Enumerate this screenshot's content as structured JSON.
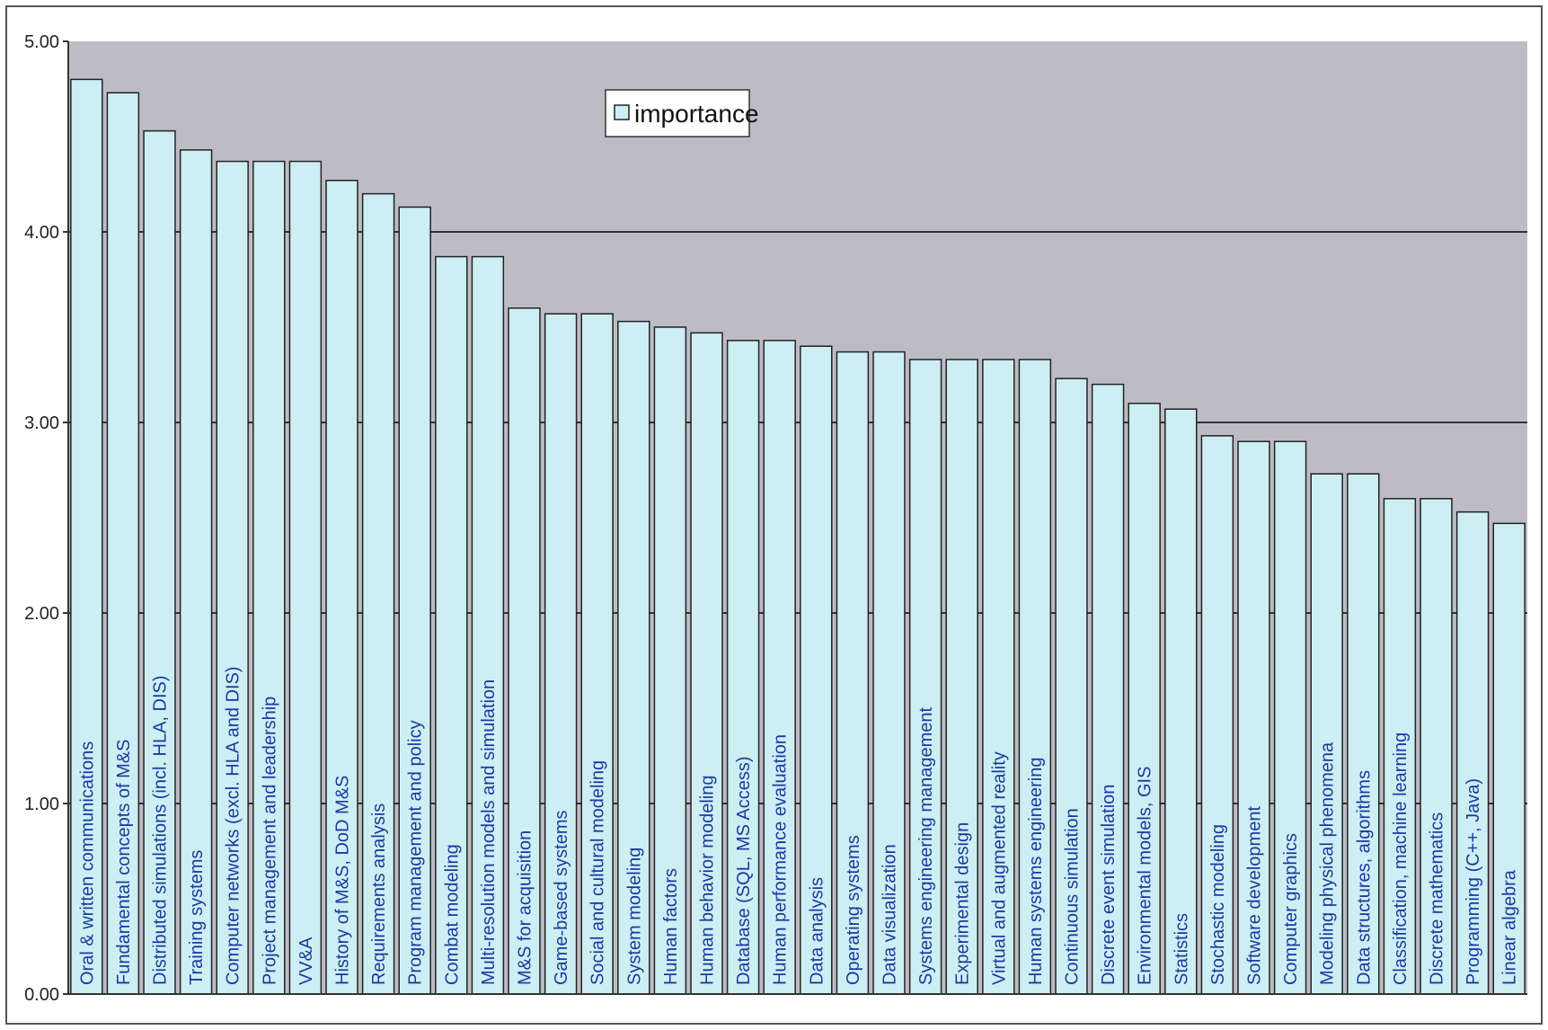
{
  "chart_data": {
    "type": "bar",
    "ylim": [
      0,
      5
    ],
    "yticks": [
      "0.00",
      "1.00",
      "2.00",
      "3.00",
      "4.00",
      "5.00"
    ],
    "grid": true,
    "legend_position": "top-center",
    "colors": {
      "plot_bg": "#bdbcc5",
      "bar_fill": "#cdeff4",
      "bar_stroke": "#222222",
      "gridline": "#333333",
      "label": "#1a3a9c"
    },
    "series": [
      {
        "name": "importance",
        "values": [
          4.8,
          4.73,
          4.53,
          4.43,
          4.37,
          4.37,
          4.37,
          4.27,
          4.2,
          4.13,
          3.87,
          3.87,
          3.6,
          3.57,
          3.57,
          3.53,
          3.5,
          3.47,
          3.43,
          3.43,
          3.4,
          3.37,
          3.37,
          3.33,
          3.33,
          3.33,
          3.33,
          3.23,
          3.2,
          3.1,
          3.07,
          2.93,
          2.9,
          2.9,
          2.73,
          2.73,
          2.6,
          2.6,
          2.53,
          2.47
        ]
      }
    ],
    "categories": [
      "Oral & written communications",
      "Fundamental concepts of M&S",
      "Distributed simulations (incl. HLA, DIS)",
      "Training systems",
      "Computer networks (excl. HLA and DIS)",
      "Project management and leadership",
      "VV&A",
      "History of M&S, DoD M&S",
      "Requirements analysis",
      "Program management and policy",
      "Combat modeling",
      "Multi-resolution models and simulation",
      "M&S for acquisition",
      "Game-based systems",
      "Social and cultural modeling",
      "System modeling",
      "Human factors",
      "Human behavior modeling",
      "Database (SQL, MS Access)",
      "Human performance evaluation",
      "Data analysis",
      "Operating systems",
      "Data visualization",
      "Systems engineering management",
      "Experimental design",
      "Virtual and augmented reality",
      "Human systems engineering",
      "Continuous simulation",
      "Discrete event simulation",
      "Environmental models, GIS",
      "Statistics",
      "Stochastic modeling",
      "Software development",
      "Computer graphics",
      "Modeling physical phenomena",
      "Data structures, algorithms",
      "Classification, machine learning",
      "Discrete mathematics",
      "Programming (C++, Java)",
      "Linear algebra"
    ]
  }
}
